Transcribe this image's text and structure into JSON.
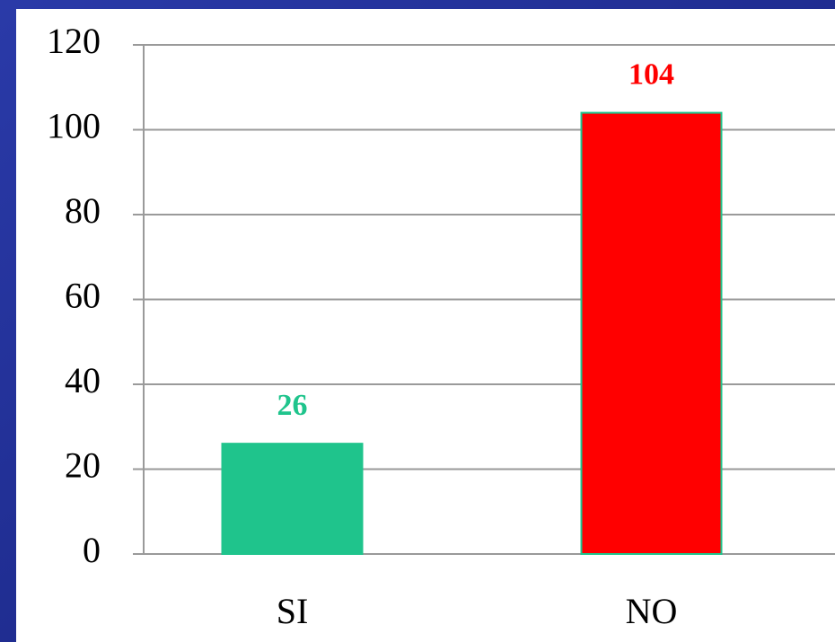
{
  "chart_data": {
    "type": "bar",
    "categories": [
      "SI",
      "NO"
    ],
    "values": [
      26,
      104
    ],
    "colors": [
      "#1fc48c",
      "#ff0000"
    ],
    "ylim": [
      0,
      120
    ],
    "yticks": [
      0,
      20,
      40,
      60,
      80,
      100,
      120
    ],
    "grid": true
  }
}
